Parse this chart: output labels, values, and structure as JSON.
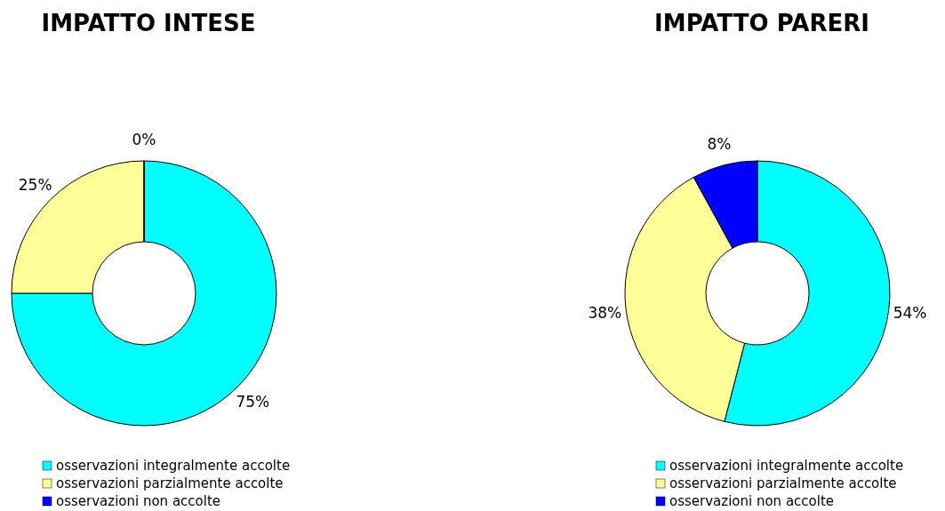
{
  "chart_data": [
    {
      "type": "donut",
      "title": "IMPATTO INTESE",
      "categories": [
        "osservazioni integralmente accolte",
        "osservazioni parzialmente accolte",
        "osservazioni non accolte"
      ],
      "values": [
        75,
        25,
        0
      ],
      "colors": [
        "#00ffff",
        "#ffff99",
        "#0000ff"
      ],
      "value_labels": [
        "75%",
        "25%",
        "0%"
      ],
      "legend": "bottom"
    },
    {
      "type": "donut",
      "title": "IMPATTO PARERI",
      "categories": [
        "osservazioni integralmente accolte",
        "osservazioni parzialmente accolte",
        "osservazioni non accolte"
      ],
      "values": [
        54,
        38,
        8
      ],
      "colors": [
        "#00ffff",
        "#ffff99",
        "#0000ff"
      ],
      "value_labels": [
        "54%",
        "38%",
        "8%"
      ],
      "legend": "bottom"
    }
  ]
}
